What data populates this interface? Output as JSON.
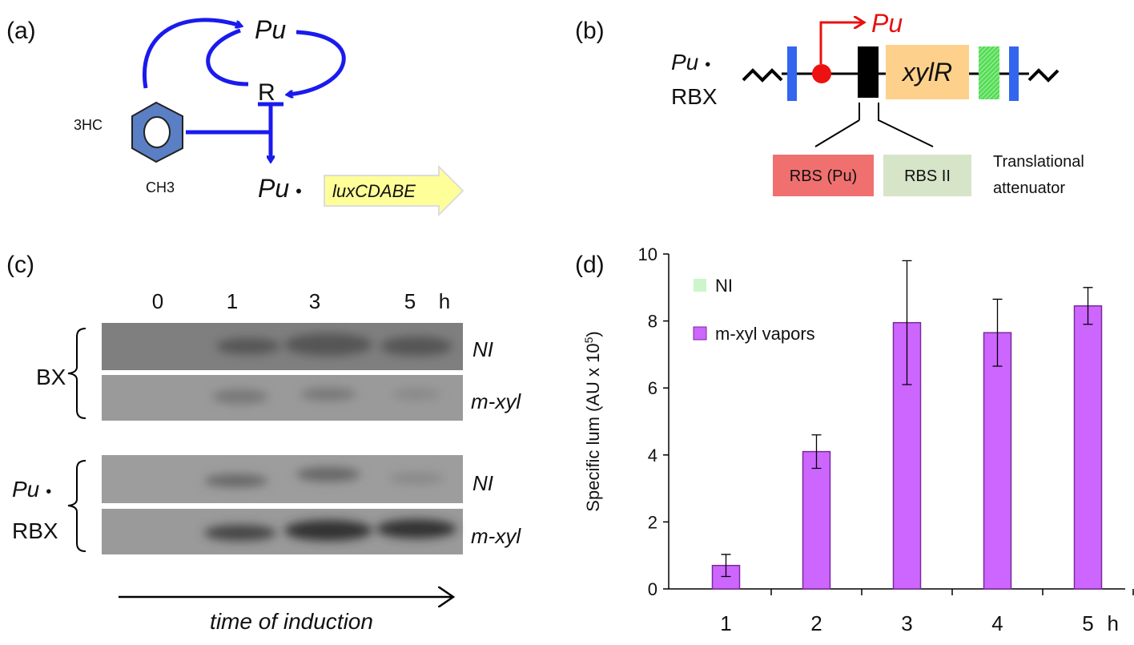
{
  "panel_a": {
    "label": "(a)",
    "promoter": "Pu",
    "regulator": "R",
    "substituent_top": "3HC",
    "substituent_bottom": "CH3",
    "fusion_promoter": "Pu",
    "fusion_dot": "•",
    "reporter": "luxCDABE"
  },
  "panel_b": {
    "label": "(b)",
    "promoter": "Pu",
    "construct_promoter": "Pu",
    "construct_dot": "•",
    "construct_name": "RBX",
    "gene": "xylR",
    "rbs_native": "RBS (Pu)",
    "rbs_alt": "RBS II",
    "attenuator_line1": "Translational",
    "attenuator_line2": "attenuator"
  },
  "panel_c": {
    "label": "(c)",
    "lanes": [
      "0",
      "1",
      "3",
      "5"
    ],
    "lane_unit": "h",
    "strain_1": "BX",
    "strain_2_promoter": "Pu",
    "strain_2_dot": "•",
    "strain_2_name": "RBX",
    "conditions": [
      "NI",
      "m-xyl",
      "NI",
      "m-xyl"
    ],
    "xlabel": "time of induction"
  },
  "chart_data": {
    "type": "bar",
    "panel_label": "(d)",
    "ylabel_parts": [
      "Specific lum (AU x 10",
      "5",
      ")"
    ],
    "categories": [
      "1",
      "2",
      "3",
      "4",
      "5"
    ],
    "x_unit": "h",
    "series": [
      {
        "name": "NI",
        "color": "#ccf5cc",
        "values": [
          0,
          0,
          0,
          0,
          0
        ]
      },
      {
        "name": "m-xyl vapors",
        "color": "#cc66ff",
        "values": [
          0.7,
          4.1,
          7.95,
          7.65,
          8.45
        ],
        "errors": [
          0.33,
          0.5,
          1.85,
          1.0,
          0.55
        ]
      }
    ],
    "ylim": [
      0,
      10
    ],
    "yticks": [
      0,
      2,
      4,
      6,
      8,
      10
    ]
  }
}
